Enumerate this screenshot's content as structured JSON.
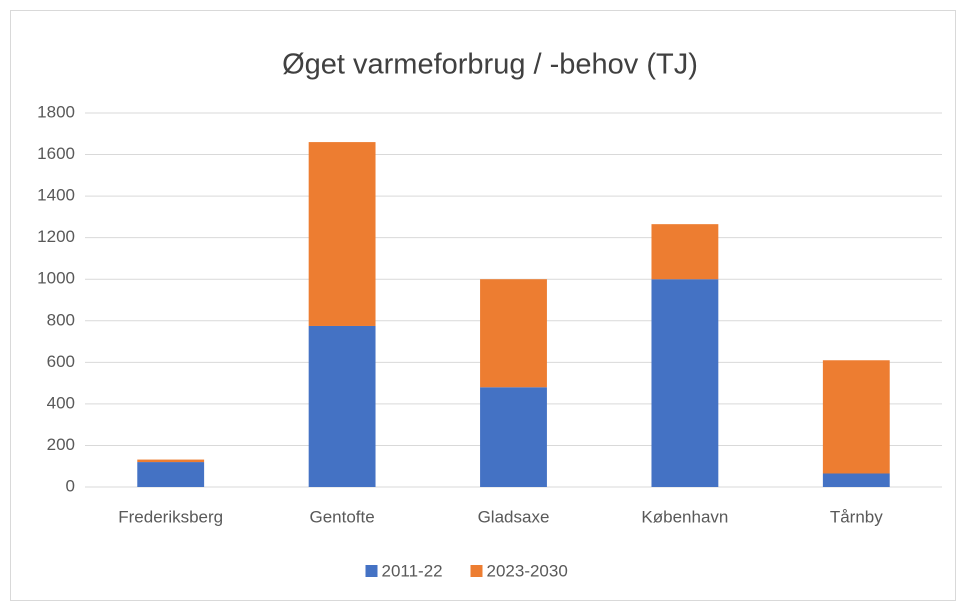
{
  "chart_data": {
    "type": "stacked_bar",
    "title": "Øget varmeforbrug / -behov (TJ)",
    "categories": [
      "Frederiksberg",
      "Gentofte",
      "Gladsaxe",
      "København",
      "Tårnby"
    ],
    "series": [
      {
        "name": "2011-22",
        "color": "#4472c4",
        "values": [
          120,
          775,
          480,
          1000,
          65
        ]
      },
      {
        "name": "2023-2030",
        "color": "#ed7d31",
        "values": [
          12,
          885,
          520,
          265,
          545
        ]
      }
    ],
    "ylim": [
      0,
      1800
    ],
    "yticks": [
      0,
      200,
      400,
      600,
      800,
      1000,
      1200,
      1400,
      1600,
      1800
    ],
    "grid": true,
    "legend": "bottom"
  }
}
